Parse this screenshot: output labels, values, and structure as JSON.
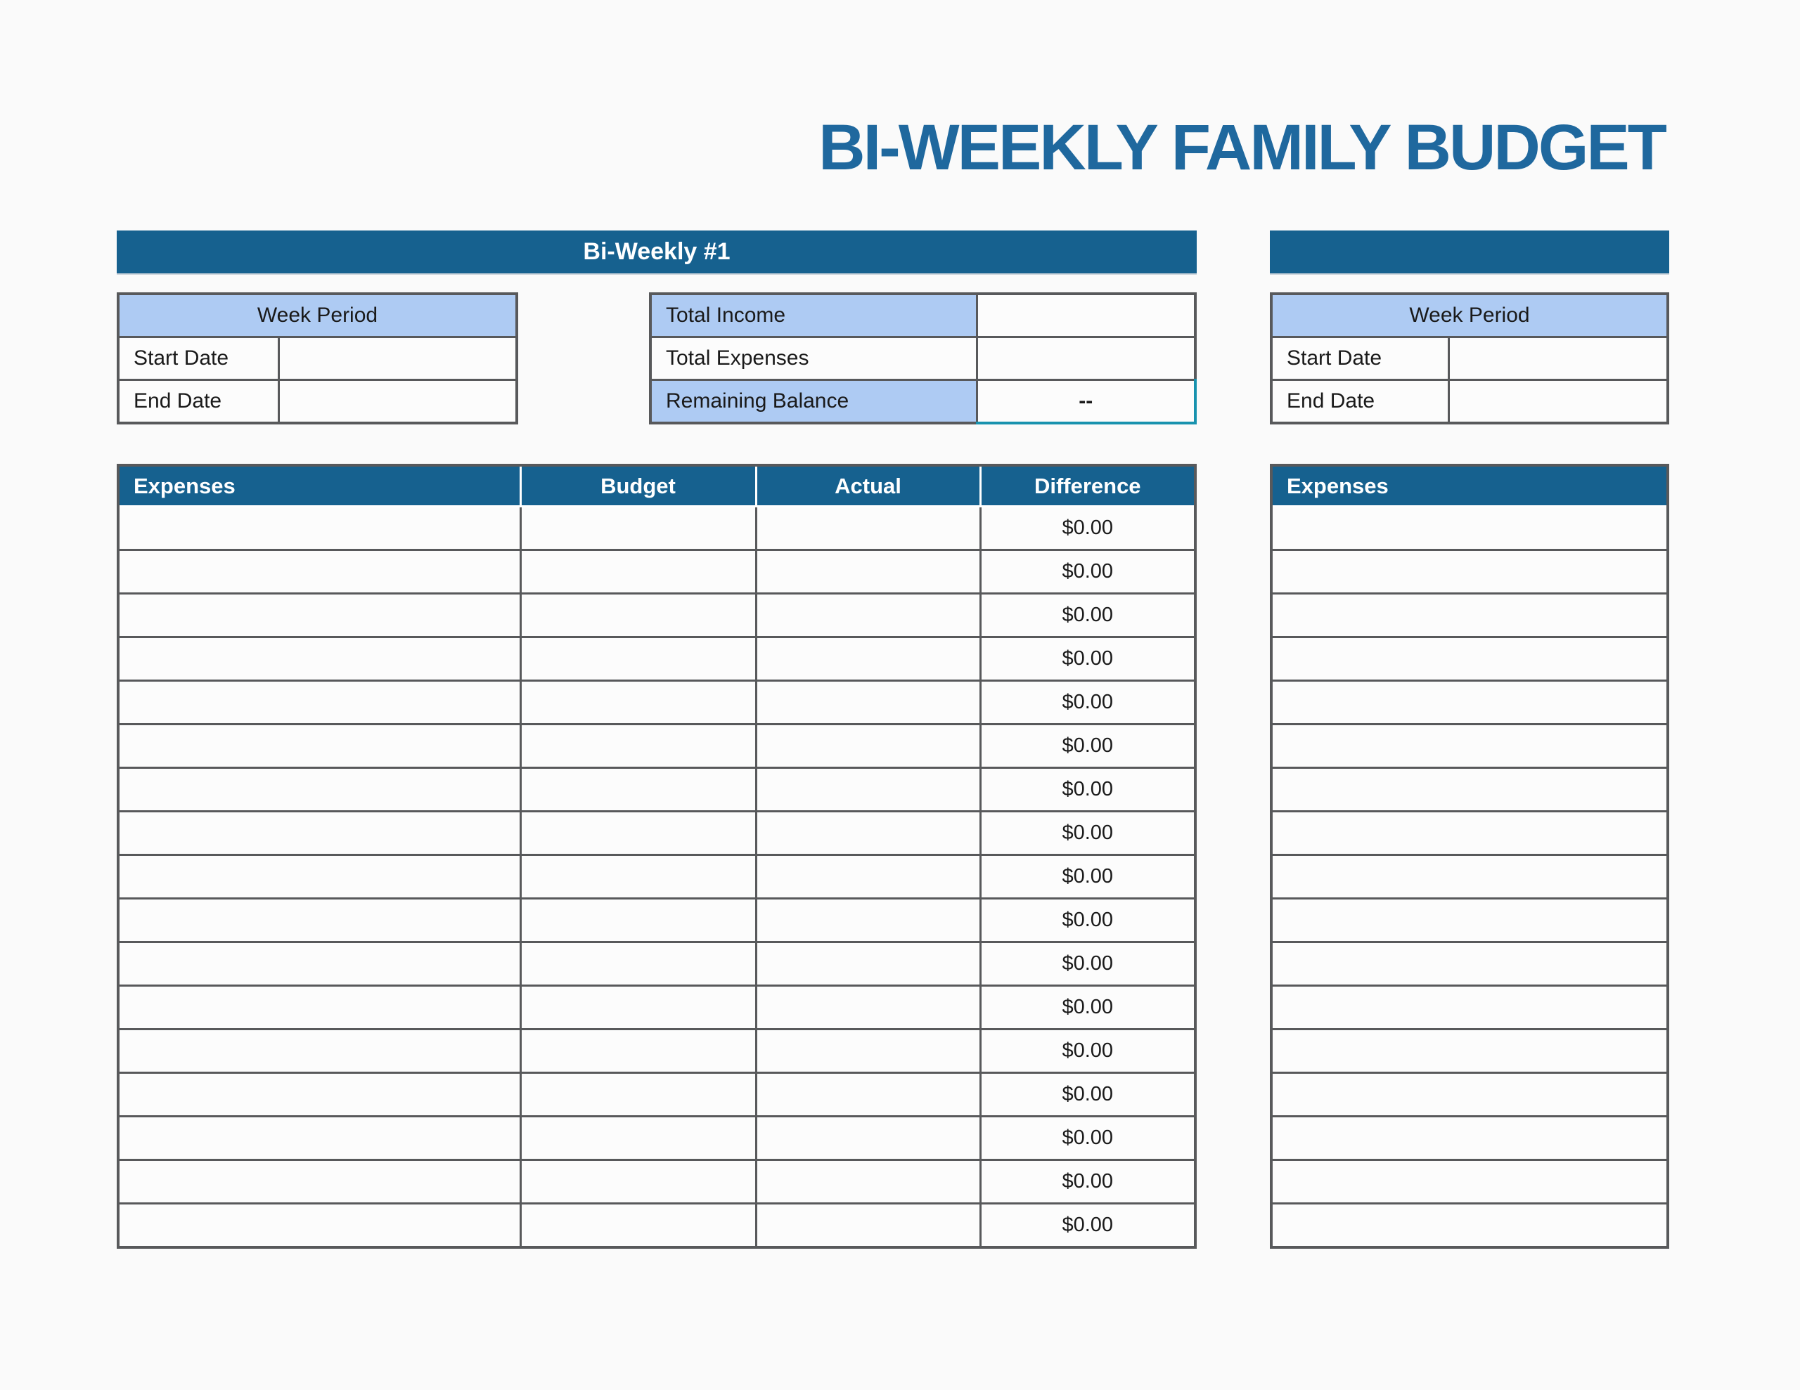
{
  "title": "BI-WEEKLY FAMILY BUDGET",
  "colors": {
    "header_blue": "#16618F",
    "title_blue": "#1F689E",
    "light_blue": "#AECBF3",
    "border_gray": "#58595B",
    "selection_teal": "#1892AE",
    "background": "#FAFAFA"
  },
  "biweekly1": {
    "bar_label": "Bi-Weekly #1",
    "week_period": {
      "header": "Week Period",
      "rows": [
        {
          "label": "Start Date",
          "value": ""
        },
        {
          "label": "End Date",
          "value": ""
        }
      ]
    },
    "summary": {
      "rows": [
        {
          "label": "Total Income",
          "value": ""
        },
        {
          "label": "Total Expenses",
          "value": ""
        },
        {
          "label": "Remaining Balance",
          "value": "--"
        }
      ]
    },
    "expense_table": {
      "headers": [
        "Expenses",
        "Budget",
        "Actual",
        "Difference"
      ],
      "rows": [
        {
          "expense": "",
          "budget": "",
          "actual": "",
          "difference": "$0.00"
        },
        {
          "expense": "",
          "budget": "",
          "actual": "",
          "difference": "$0.00"
        },
        {
          "expense": "",
          "budget": "",
          "actual": "",
          "difference": "$0.00"
        },
        {
          "expense": "",
          "budget": "",
          "actual": "",
          "difference": "$0.00"
        },
        {
          "expense": "",
          "budget": "",
          "actual": "",
          "difference": "$0.00"
        },
        {
          "expense": "",
          "budget": "",
          "actual": "",
          "difference": "$0.00"
        },
        {
          "expense": "",
          "budget": "",
          "actual": "",
          "difference": "$0.00"
        },
        {
          "expense": "",
          "budget": "",
          "actual": "",
          "difference": "$0.00"
        },
        {
          "expense": "",
          "budget": "",
          "actual": "",
          "difference": "$0.00"
        },
        {
          "expense": "",
          "budget": "",
          "actual": "",
          "difference": "$0.00"
        },
        {
          "expense": "",
          "budget": "",
          "actual": "",
          "difference": "$0.00"
        },
        {
          "expense": "",
          "budget": "",
          "actual": "",
          "difference": "$0.00"
        },
        {
          "expense": "",
          "budget": "",
          "actual": "",
          "difference": "$0.00"
        },
        {
          "expense": "",
          "budget": "",
          "actual": "",
          "difference": "$0.00"
        },
        {
          "expense": "",
          "budget": "",
          "actual": "",
          "difference": "$0.00"
        },
        {
          "expense": "",
          "budget": "",
          "actual": "",
          "difference": "$0.00"
        },
        {
          "expense": "",
          "budget": "",
          "actual": "",
          "difference": "$0.00"
        }
      ]
    }
  },
  "biweekly2": {
    "bar_label": "",
    "week_period": {
      "header": "Week Period",
      "rows": [
        {
          "label": "Start Date",
          "value": ""
        },
        {
          "label": "End Date",
          "value": ""
        }
      ]
    },
    "expense_table": {
      "headers": [
        "Expenses"
      ],
      "rows": [
        "",
        "",
        "",
        "",
        "",
        "",
        "",
        "",
        "",
        "",
        "",
        "",
        "",
        "",
        "",
        "",
        ""
      ]
    }
  }
}
